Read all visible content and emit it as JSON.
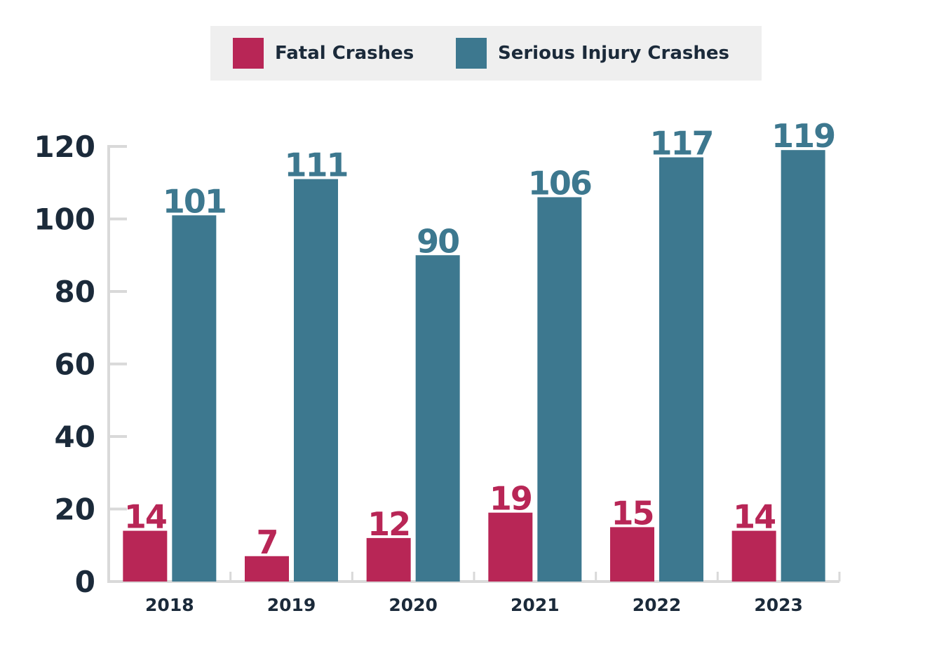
{
  "legend": {
    "items": [
      {
        "label": "Fatal Crashes",
        "color": "#b82656"
      },
      {
        "label": "Serious Injury Crashes",
        "color": "#3d788f"
      }
    ]
  },
  "chart_data": {
    "type": "bar",
    "categories": [
      "2018",
      "2019",
      "2020",
      "2021",
      "2022",
      "2023"
    ],
    "series": [
      {
        "name": "Fatal Crashes",
        "color": "#b82656",
        "values": [
          14,
          7,
          12,
          19,
          15,
          14
        ]
      },
      {
        "name": "Serious Injury Crashes",
        "color": "#3d788f",
        "values": [
          101,
          111,
          90,
          106,
          117,
          119
        ]
      }
    ],
    "yticks": [
      0,
      20,
      40,
      60,
      80,
      100,
      120
    ],
    "ylim": [
      0,
      120
    ],
    "grid": false,
    "legend_position": "top-center",
    "data_labels": true
  }
}
